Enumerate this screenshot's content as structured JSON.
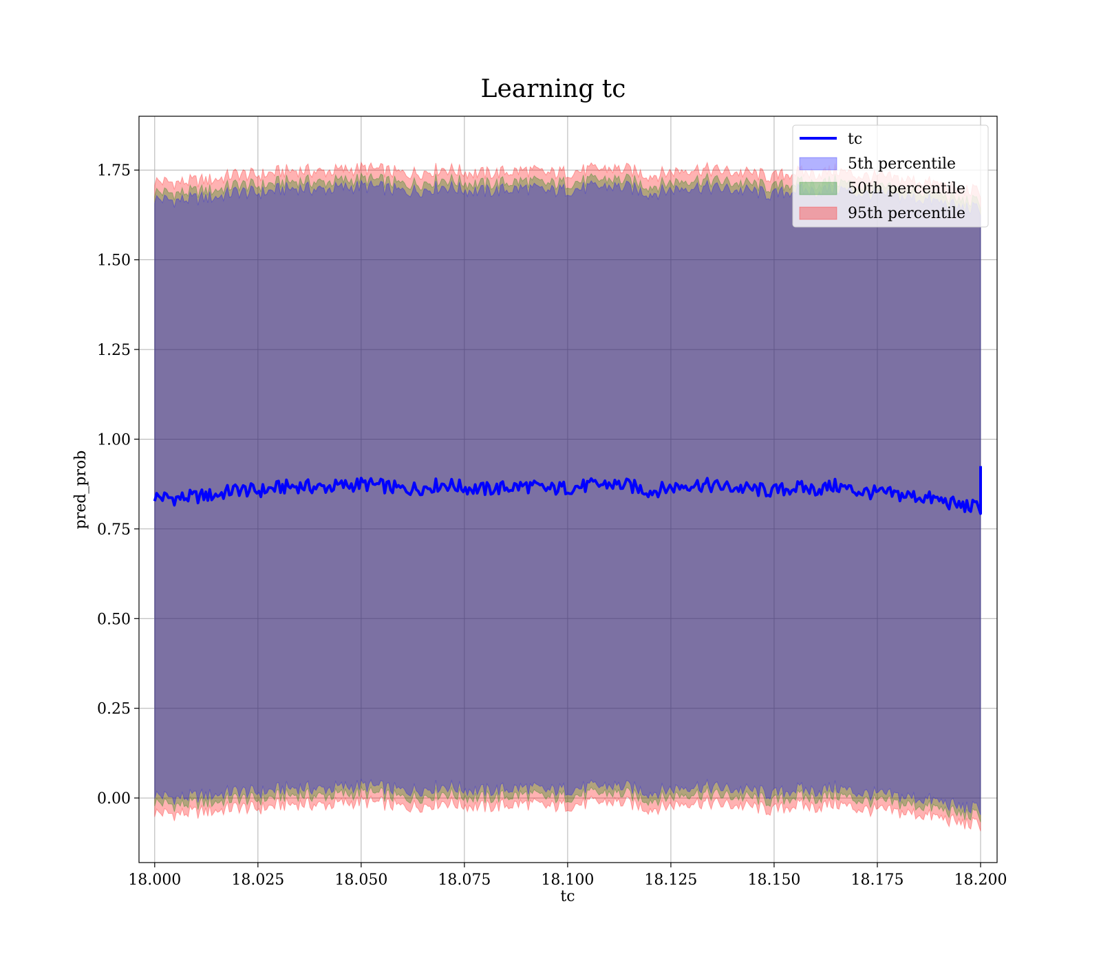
{
  "chart_data": {
    "type": "line",
    "title": "Learning tc",
    "xlabel": "tc",
    "ylabel": "pred_prob",
    "xlim": [
      17.9962,
      18.204
    ],
    "ylim": [
      -0.18,
      1.9
    ],
    "grid": true,
    "legend_position": "top-right",
    "x_ticks": [
      "18.000",
      "18.025",
      "18.050",
      "18.075",
      "18.100",
      "18.125",
      "18.150",
      "18.175",
      "18.200"
    ],
    "x_tick_values": [
      18.0,
      18.025,
      18.05,
      18.075,
      18.1,
      18.125,
      18.15,
      18.175,
      18.2
    ],
    "y_ticks": [
      "0.00",
      "0.25",
      "0.50",
      "0.75",
      "1.00",
      "1.25",
      "1.50",
      "1.75"
    ],
    "y_tick_values": [
      0.0,
      0.25,
      0.5,
      0.75,
      1.0,
      1.25,
      1.5,
      1.75
    ],
    "x": [
      18.0,
      18.005,
      18.01,
      18.015,
      18.02,
      18.025,
      18.03,
      18.035,
      18.04,
      18.045,
      18.05,
      18.055,
      18.06,
      18.065,
      18.07,
      18.075,
      18.08,
      18.085,
      18.09,
      18.095,
      18.1,
      18.105,
      18.11,
      18.115,
      18.12,
      18.125,
      18.13,
      18.135,
      18.14,
      18.145,
      18.15,
      18.155,
      18.16,
      18.165,
      18.17,
      18.175,
      18.18,
      18.185,
      18.19,
      18.195,
      18.2
    ],
    "series": [
      {
        "name": "tc",
        "kind": "line",
        "color": "#0000ff",
        "values": [
          0.84,
          0.835,
          0.84,
          0.845,
          0.86,
          0.855,
          0.865,
          0.87,
          0.865,
          0.87,
          0.875,
          0.87,
          0.86,
          0.865,
          0.875,
          0.865,
          0.86,
          0.865,
          0.87,
          0.86,
          0.865,
          0.87,
          0.875,
          0.87,
          0.855,
          0.865,
          0.875,
          0.87,
          0.865,
          0.86,
          0.855,
          0.865,
          0.86,
          0.87,
          0.855,
          0.85,
          0.845,
          0.84,
          0.83,
          0.815,
          0.81
        ],
        "final_spike": 0.925
      },
      {
        "name": "5th percentile",
        "kind": "band",
        "color": "#0000ff",
        "lower": [
          0.01,
          0.0,
          0.005,
          0.01,
          0.02,
          0.015,
          0.025,
          0.03,
          0.025,
          0.03,
          0.035,
          0.03,
          0.02,
          0.025,
          0.035,
          0.025,
          0.02,
          0.025,
          0.03,
          0.02,
          0.025,
          0.03,
          0.035,
          0.03,
          0.015,
          0.025,
          0.035,
          0.03,
          0.025,
          0.02,
          0.01,
          0.025,
          0.02,
          0.03,
          0.015,
          0.01,
          0.005,
          0.0,
          -0.01,
          -0.025,
          -0.03
        ],
        "upper": [
          1.67,
          1.665,
          1.67,
          1.675,
          1.69,
          1.685,
          1.695,
          1.7,
          1.695,
          1.7,
          1.705,
          1.7,
          1.69,
          1.695,
          1.705,
          1.695,
          1.69,
          1.695,
          1.7,
          1.69,
          1.695,
          1.7,
          1.705,
          1.7,
          1.685,
          1.695,
          1.705,
          1.7,
          1.695,
          1.69,
          1.68,
          1.695,
          1.69,
          1.7,
          1.685,
          1.68,
          1.675,
          1.67,
          1.66,
          1.645,
          1.64
        ]
      },
      {
        "name": "50th percentile",
        "kind": "band",
        "color": "#008000",
        "lower": [
          -0.01,
          -0.02,
          -0.015,
          -0.01,
          0.0,
          -0.005,
          0.005,
          0.01,
          0.005,
          0.01,
          0.015,
          0.01,
          0.0,
          0.005,
          0.015,
          0.005,
          0.0,
          0.005,
          0.01,
          0.0,
          0.005,
          0.01,
          0.015,
          0.01,
          -0.005,
          0.005,
          0.015,
          0.01,
          0.005,
          0.0,
          -0.01,
          0.005,
          0.0,
          0.01,
          -0.005,
          -0.01,
          -0.015,
          -0.02,
          -0.03,
          -0.045,
          -0.05
        ],
        "upper": [
          1.69,
          1.685,
          1.69,
          1.695,
          1.71,
          1.705,
          1.715,
          1.72,
          1.715,
          1.72,
          1.725,
          1.72,
          1.71,
          1.715,
          1.725,
          1.715,
          1.71,
          1.715,
          1.72,
          1.71,
          1.715,
          1.72,
          1.725,
          1.72,
          1.705,
          1.715,
          1.725,
          1.72,
          1.715,
          1.71,
          1.7,
          1.715,
          1.71,
          1.72,
          1.705,
          1.7,
          1.695,
          1.69,
          1.68,
          1.665,
          1.66
        ]
      },
      {
        "name": "95th percentile",
        "kind": "band",
        "color": "#ff0000",
        "lower": [
          -0.04,
          -0.045,
          -0.04,
          -0.035,
          -0.025,
          -0.03,
          -0.02,
          -0.015,
          -0.02,
          -0.015,
          -0.01,
          -0.015,
          -0.025,
          -0.02,
          -0.01,
          -0.02,
          -0.025,
          -0.02,
          -0.015,
          -0.025,
          -0.02,
          -0.015,
          -0.01,
          -0.015,
          -0.03,
          -0.02,
          -0.01,
          -0.015,
          -0.02,
          -0.025,
          -0.035,
          -0.02,
          -0.025,
          -0.015,
          -0.03,
          -0.035,
          -0.04,
          -0.045,
          -0.055,
          -0.07,
          -0.075
        ],
        "upper": [
          1.72,
          1.715,
          1.72,
          1.725,
          1.74,
          1.735,
          1.745,
          1.75,
          1.745,
          1.75,
          1.755,
          1.75,
          1.74,
          1.745,
          1.755,
          1.745,
          1.74,
          1.745,
          1.75,
          1.74,
          1.745,
          1.75,
          1.755,
          1.75,
          1.735,
          1.745,
          1.755,
          1.75,
          1.745,
          1.74,
          1.73,
          1.745,
          1.74,
          1.75,
          1.735,
          1.73,
          1.725,
          1.72,
          1.71,
          1.695,
          1.69
        ]
      }
    ]
  }
}
